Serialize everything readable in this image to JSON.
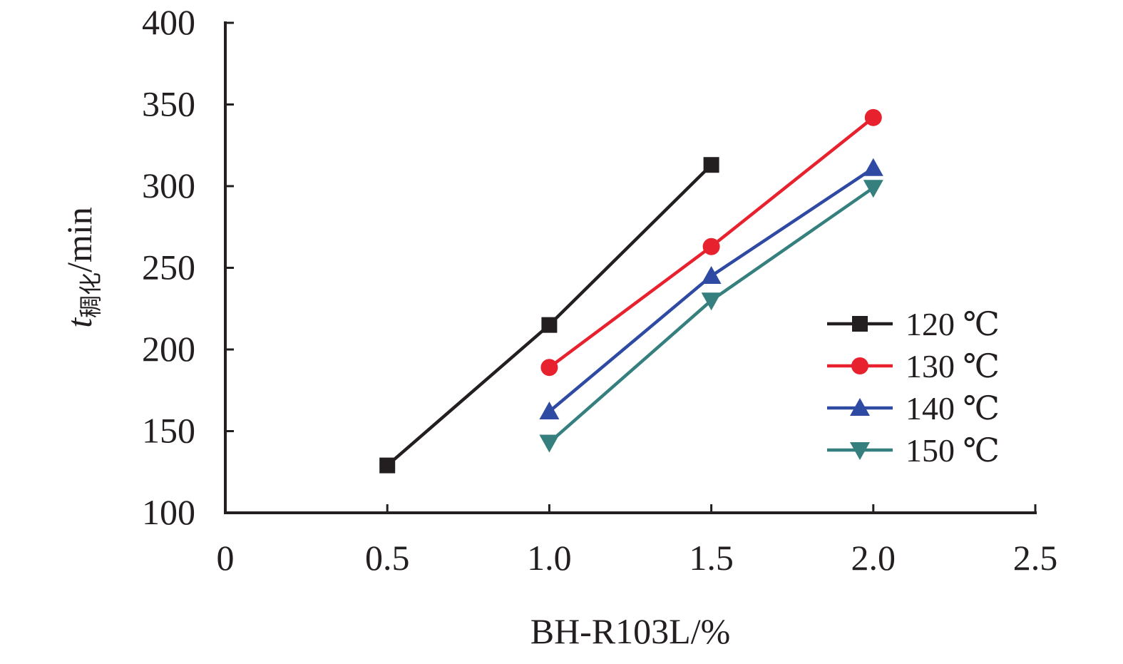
{
  "chart_data": {
    "type": "line",
    "xlabel": "BH-R103L/%",
    "ylabel": {
      "symbol": "t",
      "subscript": "稠化",
      "unit": "/min"
    },
    "xlim": [
      0,
      2.5
    ],
    "ylim": [
      100,
      400
    ],
    "xticks": [
      "0",
      "0.5",
      "1.0",
      "1.5",
      "2.0",
      "2.5"
    ],
    "yticks": [
      "100",
      "150",
      "200",
      "250",
      "300",
      "350",
      "400"
    ],
    "grid": false,
    "legend_position": "right",
    "series": [
      {
        "name": "120 ℃",
        "color": "#231f20",
        "marker": "square",
        "points": [
          {
            "x": 0.5,
            "y": 129
          },
          {
            "x": 1.0,
            "y": 215
          },
          {
            "x": 1.5,
            "y": 313
          }
        ]
      },
      {
        "name": "130 ℃",
        "color": "#e8212e",
        "marker": "circle",
        "points": [
          {
            "x": 1.0,
            "y": 189
          },
          {
            "x": 1.5,
            "y": 263
          },
          {
            "x": 2.0,
            "y": 342
          }
        ]
      },
      {
        "name": "140 ℃",
        "color": "#2e4aa3",
        "marker": "triangle-up",
        "points": [
          {
            "x": 1.0,
            "y": 162
          },
          {
            "x": 1.5,
            "y": 245
          },
          {
            "x": 2.0,
            "y": 311
          }
        ]
      },
      {
        "name": "150 ℃",
        "color": "#357f7f",
        "marker": "triangle-down",
        "points": [
          {
            "x": 1.0,
            "y": 143
          },
          {
            "x": 1.5,
            "y": 230
          },
          {
            "x": 2.0,
            "y": 299
          }
        ]
      }
    ]
  }
}
